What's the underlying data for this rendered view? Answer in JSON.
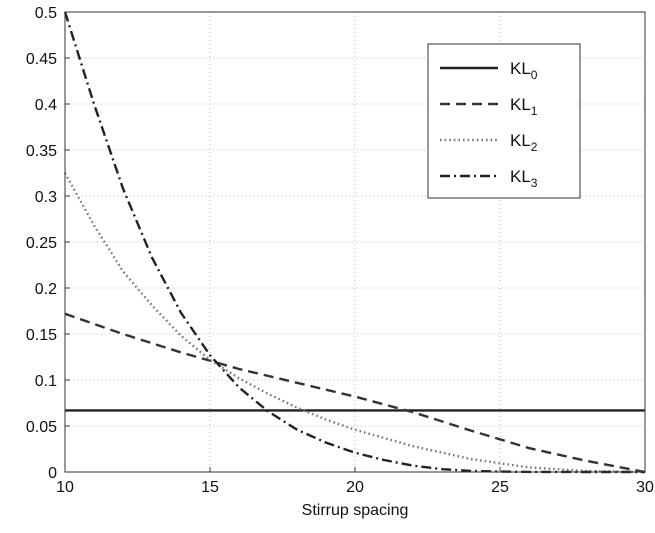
{
  "chart_data": {
    "type": "line",
    "title": "",
    "xlabel": "Stirrup spacing",
    "ylabel": "",
    "xlim": [
      10,
      30
    ],
    "ylim": [
      0,
      0.5
    ],
    "xticks": [
      "10",
      "15",
      "20",
      "25",
      "30"
    ],
    "yticks": [
      "0",
      "0.05",
      "0.1",
      "0.15",
      "0.2",
      "0.25",
      "0.3",
      "0.35",
      "0.4",
      "0.45",
      "0.5"
    ],
    "grid": true,
    "legend_position": "top-right",
    "series": [
      {
        "name": "KL0",
        "label_base": "KL",
        "label_sub": "0",
        "style": "solid",
        "color": "#222222",
        "x": [
          10,
          30
        ],
        "y": [
          0.067,
          0.067
        ]
      },
      {
        "name": "KL1",
        "label_base": "KL",
        "label_sub": "1",
        "style": "dashed",
        "color": "#333333",
        "x": [
          10,
          12,
          14,
          16,
          18,
          20,
          22,
          24,
          26,
          28,
          30
        ],
        "y": [
          0.172,
          0.15,
          0.13,
          0.112,
          0.097,
          0.082,
          0.065,
          0.045,
          0.026,
          0.012,
          0.0
        ]
      },
      {
        "name": "KL2",
        "label_base": "KL",
        "label_sub": "2",
        "style": "dotted",
        "color": "#777777",
        "x": [
          10,
          11,
          12,
          13,
          14,
          15,
          16,
          17,
          18,
          19,
          20,
          22,
          24,
          26,
          28,
          30
        ],
        "y": [
          0.325,
          0.268,
          0.218,
          0.181,
          0.148,
          0.122,
          0.102,
          0.085,
          0.07,
          0.057,
          0.046,
          0.028,
          0.014,
          0.005,
          0.001,
          0.0
        ]
      },
      {
        "name": "KL3",
        "label_base": "KL",
        "label_sub": "3",
        "style": "dashdot",
        "color": "#222222",
        "x": [
          10,
          11,
          12,
          13,
          14,
          15,
          16,
          17,
          18,
          19,
          20,
          21,
          22,
          23,
          24,
          25,
          26,
          28,
          30
        ],
        "y": [
          0.5,
          0.4,
          0.308,
          0.233,
          0.173,
          0.127,
          0.092,
          0.066,
          0.046,
          0.032,
          0.021,
          0.013,
          0.007,
          0.003,
          0.0012,
          0.0004,
          0.0001,
          0.0,
          0.0
        ]
      }
    ]
  }
}
